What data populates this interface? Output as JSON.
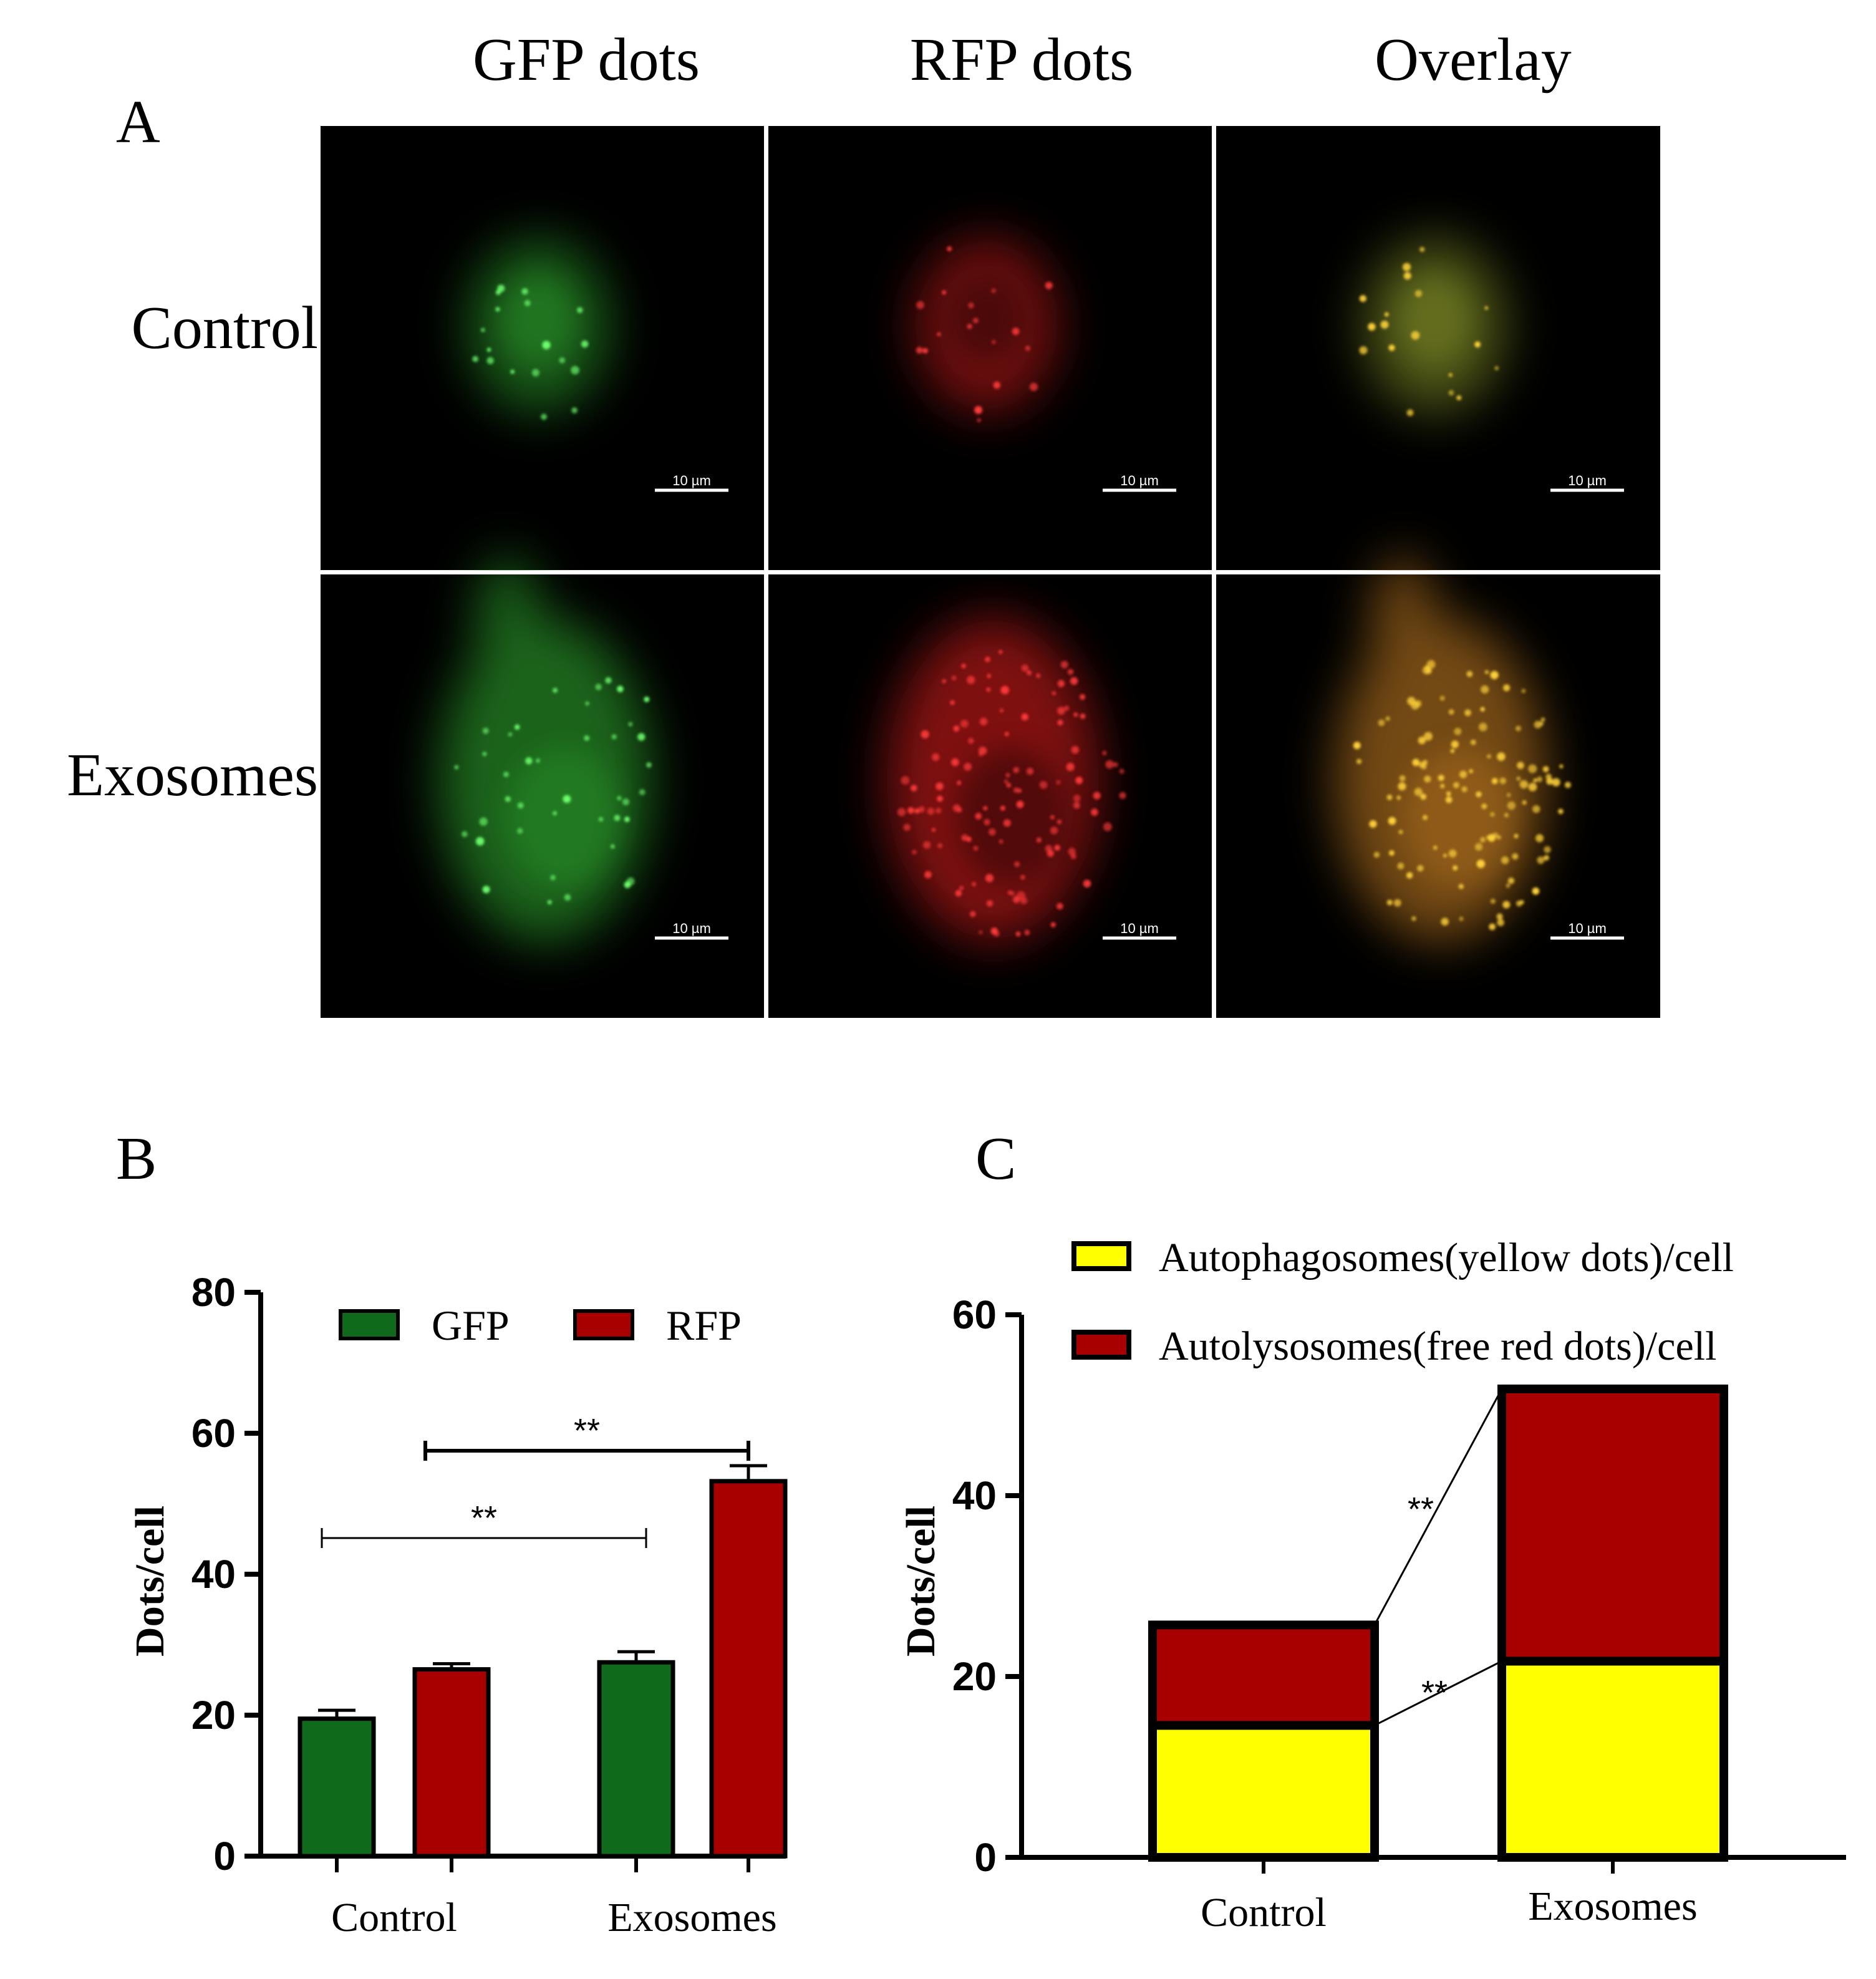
{
  "panel_a": {
    "label": "A",
    "column_headers": [
      "GFP dots",
      "RFP dots",
      "Overlay"
    ],
    "row_labels": [
      "Control",
      "Exosomes"
    ],
    "scale_bar_text": "10 µm",
    "colors": {
      "background": "#000000",
      "gfp": "#2fa52f",
      "rfp": "#d41a1a",
      "overlay_control": "#8c9a2a",
      "overlay_exosomes": "#c07a20"
    },
    "cells": [
      {
        "row": "Control",
        "column": "GFP dots",
        "channel": "gfp",
        "density": "low"
      },
      {
        "row": "Control",
        "column": "RFP dots",
        "channel": "rfp",
        "density": "low"
      },
      {
        "row": "Control",
        "column": "Overlay",
        "channel": "overlay",
        "density": "low"
      },
      {
        "row": "Exosomes",
        "column": "GFP dots",
        "channel": "gfp",
        "density": "medium"
      },
      {
        "row": "Exosomes",
        "column": "RFP dots",
        "channel": "rfp",
        "density": "high"
      },
      {
        "row": "Exosomes",
        "column": "Overlay",
        "channel": "overlay",
        "density": "high"
      }
    ]
  },
  "chart_data": [
    {
      "panel": "B",
      "type": "bar",
      "ylabel": "Dots/cell",
      "xlabel": "",
      "ylim": [
        0,
        80
      ],
      "yticks": [
        0,
        20,
        40,
        60,
        80
      ],
      "categories": [
        "Control",
        "Exosomes"
      ],
      "series": [
        {
          "name": "GFP",
          "color": "#0f6a1c",
          "values": [
            19.5,
            27.5
          ],
          "errors": [
            1.2,
            1.5
          ]
        },
        {
          "name": "RFP",
          "color": "#a80000",
          "values": [
            26.5,
            53.2
          ],
          "errors": [
            0.8,
            2.2
          ]
        }
      ],
      "legend": "top",
      "significance": [
        {
          "label": "**",
          "between": [
            "Control GFP",
            "Exosomes GFP"
          ]
        },
        {
          "label": "**",
          "between": [
            "Control RFP",
            "Exosomes RFP"
          ]
        }
      ]
    },
    {
      "panel": "C",
      "type": "bar",
      "stacked": true,
      "ylabel": "Dots/cell",
      "xlabel": "",
      "ylim": [
        0,
        60
      ],
      "yticks": [
        0,
        20,
        40,
        60
      ],
      "categories": [
        "Control",
        "Exosomes"
      ],
      "series": [
        {
          "name": "Autophagosomes(yellow dots)/cell",
          "color": "#ffff00",
          "values": [
            14.6,
            21.7
          ]
        },
        {
          "name": "Autolysosomes(free red dots)/cell",
          "color": "#a80000",
          "values": [
            11.1,
            30.1
          ]
        }
      ],
      "legend": "top-left",
      "significance": [
        {
          "label": "**",
          "between": [
            "Control Autolysosomes",
            "Exosomes Autolysosomes"
          ]
        },
        {
          "label": "**",
          "between": [
            "Control Autophagosomes",
            "Exosomes Autophagosomes"
          ]
        }
      ]
    }
  ]
}
